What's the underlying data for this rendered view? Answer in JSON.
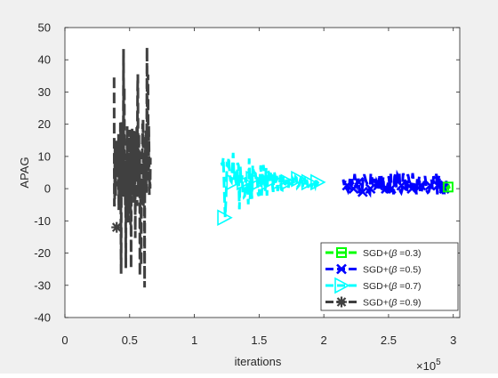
{
  "chart_data": {
    "type": "line",
    "title": "",
    "xlabel": "iterations",
    "ylabel": "APAG",
    "x_exponent_label": "×10",
    "x_exponent_power": "5",
    "xlim": [
      0,
      3.05
    ],
    "ylim": [
      -40,
      50
    ],
    "x_ticks": [
      0,
      0.5,
      1,
      1.5,
      2,
      2.5,
      3
    ],
    "x_tick_labels": [
      "0",
      "0.5",
      "1",
      "1.5",
      "2",
      "2.5",
      "3"
    ],
    "y_ticks": [
      -40,
      -30,
      -20,
      -10,
      0,
      10,
      20,
      30,
      40,
      50
    ],
    "y_tick_labels": [
      "-40",
      "-30",
      "-20",
      "-10",
      "0",
      "10",
      "20",
      "30",
      "40",
      "50"
    ],
    "grid": false,
    "legend_position": "bottom-right",
    "series": [
      {
        "name": "SGD+(β =0.3)",
        "legend_label": "SGD+(",
        "legend_beta": "β",
        "legend_value": " =0.3)",
        "color": "#00ff00",
        "marker": "square",
        "x_range": [
          2.95,
          2.97
        ],
        "y_range": [
          0,
          1
        ],
        "marker_points": [
          [
            2.96,
            0.5
          ]
        ]
      },
      {
        "name": "SGD+(β =0.5)",
        "legend_label": "SGD+(",
        "legend_beta": "β",
        "legend_value": " =0.5)",
        "color": "#0000ff",
        "marker": "x",
        "x_range": [
          2.15,
          2.95
        ],
        "y_range": [
          -2,
          5
        ],
        "marker_points": [
          [
            2.18,
            1
          ],
          [
            2.23,
            0
          ],
          [
            2.27,
            2
          ],
          [
            2.3,
            -1
          ],
          [
            2.36,
            0
          ],
          [
            2.42,
            1
          ],
          [
            2.48,
            0
          ],
          [
            2.52,
            0
          ],
          [
            2.6,
            1
          ],
          [
            2.68,
            0
          ],
          [
            2.75,
            1
          ],
          [
            2.82,
            1
          ],
          [
            2.88,
            1
          ],
          [
            2.93,
            0
          ]
        ]
      },
      {
        "name": "SGD+(β =0.7)",
        "legend_label": "SGD+(",
        "legend_beta": "β",
        "legend_value": " =0.7)",
        "color": "#00ffff",
        "marker": "triangle-right",
        "x_range": [
          1.21,
          1.96
        ],
        "y_range": [
          -10,
          13
        ],
        "marker_points": [
          [
            1.23,
            -9
          ],
          [
            1.3,
            2
          ],
          [
            1.38,
            2
          ],
          [
            1.45,
            3
          ],
          [
            1.5,
            2
          ],
          [
            1.57,
            2
          ],
          [
            1.65,
            2
          ],
          [
            1.72,
            2
          ],
          [
            1.8,
            3
          ],
          [
            1.88,
            2
          ],
          [
            1.95,
            2
          ]
        ]
      },
      {
        "name": "SGD+(β =0.9)",
        "legend_label": "SGD+(",
        "legend_beta": "β",
        "legend_value": " =0.9)",
        "color": "#404040",
        "marker": "asterisk",
        "x_range": [
          0.38,
          0.66
        ],
        "y_range": [
          -34,
          45
        ],
        "marker_points": [
          [
            0.4,
            -12
          ]
        ]
      }
    ]
  }
}
